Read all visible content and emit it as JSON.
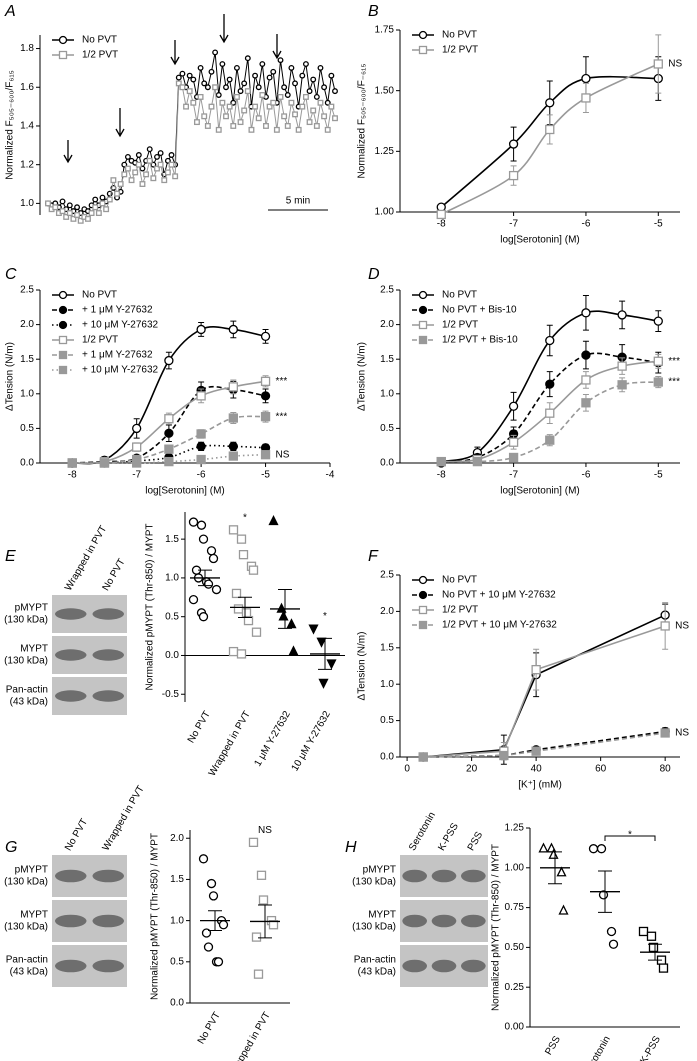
{
  "chart_data": [
    {
      "type": "line",
      "label": "A",
      "y_label": "Normalized F₅₀₅₋₆₀₀/F₆₁₅",
      "ylim": [
        0.94,
        1.87
      ],
      "yticks": [
        {
          "value": 1,
          "label": "1.0"
        },
        1.2,
        1.4,
        1.6,
        1.8
      ],
      "scale_bar": "5 min",
      "legend": "upper left",
      "series": [
        {
          "name": "No PVT",
          "color": "#000000",
          "marker": "open-circle",
          "dash": "solid",
          "values": [
            1.0,
            0.99,
            1.0,
            0.98,
            1.01,
            0.97,
            0.99,
            0.96,
            0.98,
            0.95,
            0.97,
            0.96,
            0.99,
            1.02,
            0.99,
            1.03,
            1.01,
            1.05,
            1.08,
            1.03,
            1.06,
            1.2,
            1.24,
            1.22,
            1.21,
            1.25,
            1.18,
            1.22,
            1.28,
            1.2,
            1.24,
            1.26,
            1.15,
            1.22,
            1.25,
            1.2,
            1.65,
            1.67,
            1.6,
            1.66,
            1.64,
            1.55,
            1.7,
            1.62,
            1.6,
            1.68,
            1.78,
            1.56,
            1.72,
            1.6,
            1.64,
            1.52,
            1.7,
            1.58,
            1.62,
            1.75,
            1.5,
            1.66,
            1.6,
            1.72,
            1.55,
            1.65,
            1.68,
            1.52,
            1.74,
            1.6,
            1.56,
            1.7,
            1.62,
            1.5,
            1.66,
            1.72,
            1.58,
            1.64,
            1.55,
            1.7,
            1.6,
            1.52,
            1.66,
            1.58
          ]
        },
        {
          "name": "1/2 PVT",
          "color": "#999999",
          "marker": "open-square",
          "dash": "solid",
          "values": [
            1.0,
            0.97,
            0.98,
            0.95,
            0.96,
            0.93,
            0.95,
            0.92,
            0.94,
            0.91,
            0.93,
            0.92,
            0.95,
            0.98,
            0.95,
            1.0,
            0.97,
            1.02,
            1.12,
            1.05,
            1.1,
            1.15,
            1.18,
            1.12,
            1.16,
            1.2,
            1.1,
            1.15,
            1.22,
            1.13,
            1.18,
            1.2,
            1.12,
            1.16,
            1.2,
            1.14,
            1.62,
            1.6,
            1.5,
            1.58,
            1.52,
            1.42,
            1.55,
            1.45,
            1.4,
            1.5,
            1.6,
            1.38,
            1.52,
            1.45,
            1.5,
            1.4,
            1.55,
            1.42,
            1.48,
            1.58,
            1.38,
            1.5,
            1.44,
            1.56,
            1.4,
            1.5,
            1.52,
            1.38,
            1.55,
            1.45,
            1.4,
            1.52,
            1.46,
            1.38,
            1.5,
            1.55,
            1.42,
            1.48,
            1.4,
            1.52,
            1.45,
            1.38,
            1.5,
            1.44
          ]
        }
      ]
    },
    {
      "type": "line",
      "label": "B",
      "smooth": true,
      "y_label": "Normalized F₅₀₅₋₆₀₀/F₋₆₁₅",
      "x_label": "log[Serotonin] (M)",
      "x": [
        -8,
        -7,
        -6.5,
        -6,
        -5
      ],
      "xlim": [
        -8.57,
        -4.7
      ],
      "xticks": [
        -8,
        -7,
        -6,
        -5
      ],
      "ylim": [
        1,
        1.75
      ],
      "yticks": [
        {
          "value": 1,
          "label": "1.00"
        },
        1.25,
        {
          "value": 1.5,
          "label": "1.50"
        },
        1.75
      ],
      "legend": "upper left",
      "series": [
        {
          "name": "No PVT",
          "color": "#000000",
          "marker": "open-circle",
          "dash": "solid",
          "values": [
            1.02,
            1.28,
            1.45,
            1.55,
            1.55
          ],
          "errors": [
            0.01,
            0.07,
            0.09,
            0.09,
            0.09
          ]
        },
        {
          "name": "1/2 PVT",
          "color": "#999999",
          "marker": "open-square",
          "dash": "solid",
          "values": [
            0.99,
            1.15,
            1.34,
            1.47,
            1.61
          ],
          "errors": [
            0.01,
            0.04,
            0.06,
            0.06,
            0.12
          ],
          "annotation": "NS"
        }
      ]
    },
    {
      "type": "line",
      "label": "C",
      "smooth": true,
      "y_label": "ΔTension (N/m)",
      "x_label": "log[Serotonin] (M)",
      "x": [
        -8,
        -7.5,
        -7,
        -6.5,
        -6,
        -5.5,
        -5
      ],
      "xlim": [
        -8.5,
        -4
      ],
      "xticks": [
        -8,
        -7,
        -6,
        -5,
        -4
      ],
      "ylim": [
        0,
        2.5
      ],
      "yticks": [
        {
          "value": 0,
          "label": "0.0"
        },
        0.5,
        {
          "value": 1,
          "label": "1.0"
        },
        1.5,
        {
          "value": 2,
          "label": "2.0"
        },
        2.5
      ],
      "legend": "upper left",
      "series": [
        {
          "name": "No PVT",
          "color": "#000000",
          "marker": "open-circle",
          "dash": "solid",
          "values": [
            0,
            0.04,
            0.5,
            1.48,
            1.93,
            1.93,
            1.83
          ],
          "errors": [
            0.02,
            0.05,
            0.14,
            0.12,
            0.1,
            0.12,
            0.1
          ]
        },
        {
          "name": "+ 1 μM Y-27632",
          "color": "#000000",
          "marker": "filled-circle",
          "dash": "dashed",
          "values": [
            0,
            0.02,
            0.07,
            0.43,
            1.05,
            1.06,
            0.97
          ],
          "errors": [
            0.01,
            0.02,
            0.03,
            0.12,
            0.12,
            0.12,
            0.1
          ]
        },
        {
          "name": "+ 10 μM Y-27632",
          "color": "#000000",
          "marker": "filled-circle",
          "dash": "dotted",
          "values": [
            0,
            0,
            0.03,
            0.08,
            0.24,
            0.24,
            0.22
          ],
          "errors": [
            0.01,
            0.01,
            0.02,
            0.03,
            0.06,
            0.06,
            0.05
          ]
        },
        {
          "name": "1/2 PVT",
          "color": "#999999",
          "marker": "open-square",
          "dash": "solid",
          "values": [
            0,
            0.02,
            0.23,
            0.64,
            0.97,
            1.1,
            1.18
          ],
          "errors": [
            0.02,
            0.02,
            0.06,
            0.08,
            0.1,
            0.1,
            0.08
          ],
          "annotation": "***"
        },
        {
          "name": "+ 1 μM Y-27632",
          "color": "#999999",
          "marker": "filled-square",
          "dash": "dashed",
          "values": [
            0,
            0,
            0.05,
            0.2,
            0.42,
            0.65,
            0.67
          ],
          "errors": [
            0.01,
            0.01,
            0.02,
            0.05,
            0.06,
            0.08,
            0.08
          ],
          "annotation": "***"
        },
        {
          "name": "+ 10 μM Y-27632",
          "color": "#999999",
          "marker": "filled-square",
          "dash": "dotted",
          "values": [
            0,
            0,
            0,
            0.02,
            0.05,
            0.1,
            0.12
          ],
          "errors": [
            0.01,
            0.01,
            0.01,
            0.01,
            0.02,
            0.03,
            0.03
          ],
          "annotation": "NS"
        }
      ]
    },
    {
      "type": "line",
      "label": "D",
      "smooth": true,
      "y_label": "ΔTension (N/m)",
      "x_label": "log[Serotonin] (M)",
      "x": [
        -8,
        -7.5,
        -7,
        -6.5,
        -6,
        -5.5,
        -5
      ],
      "xlim": [
        -8.57,
        -4.7
      ],
      "xticks": [
        -8,
        -7,
        -6,
        -5
      ],
      "ylim": [
        0,
        2.5
      ],
      "yticks": [
        {
          "value": 0,
          "label": "0.0"
        },
        0.5,
        {
          "value": 1,
          "label": "1.0"
        },
        1.5,
        {
          "value": 2,
          "label": "2.0"
        },
        2.5
      ],
      "legend": "upper left",
      "series": [
        {
          "name": "No PVT",
          "color": "#000000",
          "marker": "open-circle",
          "dash": "solid",
          "values": [
            0.02,
            0.15,
            0.82,
            1.77,
            2.17,
            2.14,
            2.05
          ],
          "errors": [
            0.03,
            0.08,
            0.2,
            0.22,
            0.25,
            0.2,
            0.15
          ]
        },
        {
          "name": "No PVT + Bis-10",
          "color": "#000000",
          "marker": "filled-circle",
          "dash": "dashed",
          "values": [
            0,
            0.08,
            0.42,
            1.14,
            1.56,
            1.53,
            1.45
          ],
          "errors": [
            0.02,
            0.04,
            0.1,
            0.18,
            0.2,
            0.18,
            0.15
          ]
        },
        {
          "name": "1/2 PVT",
          "color": "#999999",
          "marker": "open-square",
          "dash": "solid",
          "values": [
            0.02,
            0.05,
            0.3,
            0.72,
            1.2,
            1.4,
            1.47
          ],
          "errors": [
            0.02,
            0.03,
            0.1,
            0.15,
            0.12,
            0.12,
            0.1
          ],
          "annotation": "***"
        },
        {
          "name": "1/2 PVT + Bis-10",
          "color": "#999999",
          "marker": "filled-square",
          "dash": "dashed",
          "values": [
            0.02,
            0.02,
            0.08,
            0.33,
            0.87,
            1.13,
            1.17
          ],
          "errors": [
            0.02,
            0.02,
            0.04,
            0.08,
            0.12,
            0.1,
            0.08
          ],
          "annotation": "***"
        }
      ]
    },
    {
      "type": "scatter",
      "label": "E",
      "y_label": "Normalized pMYPT (Thr-850) / MYPT",
      "ylim": [
        -0.6,
        1.85
      ],
      "yticks": [
        -0.5,
        {
          "value": 0,
          "label": "0.0"
        },
        0.5,
        {
          "value": 1,
          "label": "1.0"
        },
        1.5
      ],
      "zero_line": true,
      "categories": [
        "No PVT",
        "Wrapped in PVT",
        "1 μM Y-27632",
        "10 μM Y-27632"
      ],
      "markers": [
        "open-circle",
        "open-square",
        "filled-triangle",
        "filled-triangle-down"
      ],
      "colors": [
        "#000000",
        "#999999",
        "#000000",
        "#000000"
      ],
      "points": [
        [
          1.72,
          1.68,
          1.5,
          1.35,
          1.25,
          1.1,
          1.0,
          0.95,
          0.92,
          0.85,
          0.72,
          0.55,
          0.5
        ],
        [
          1.62,
          1.5,
          1.3,
          1.15,
          1.1,
          0.8,
          0.6,
          0.55,
          0.45,
          0.3,
          0.05,
          0.02
        ],
        [
          1.73,
          0.6,
          0.5,
          0.4,
          0.05
        ],
        [
          0.35,
          0.18,
          -0.35,
          -0.1
        ]
      ],
      "mean": [
        1.0,
        0.62,
        0.6,
        0.02
      ],
      "sem": [
        0.1,
        0.13,
        0.25,
        0.2
      ],
      "annotations": [
        null,
        "*",
        null,
        "*"
      ],
      "blot": {
        "lanes": [
          "Wrapped in PVT",
          "No PVT"
        ],
        "bands": [
          {
            "protein": "pMYPT",
            "size": "(130 kDa)"
          },
          {
            "protein": "MYPT",
            "size": "(130 kDa)"
          },
          {
            "protein": "Pan-actin",
            "size": "(43 kDa)"
          }
        ]
      }
    },
    {
      "type": "line",
      "label": "F",
      "y_label": "ΔTension (N/m)",
      "x_label": "[K⁺] (mM)",
      "x": [
        5,
        30,
        40,
        80
      ],
      "xlim": [
        -2.2,
        84.6
      ],
      "xticks": [
        0,
        20,
        40,
        60,
        80
      ],
      "ylim": [
        0,
        2.5
      ],
      "yticks": [
        {
          "value": 0,
          "label": "0.0"
        },
        0.5,
        {
          "value": 1,
          "label": "1.0"
        },
        1.5,
        {
          "value": 2,
          "label": "2.0"
        },
        2.5
      ],
      "legend": "upper left",
      "series": [
        {
          "name": "No PVT",
          "color": "#000000",
          "marker": "open-circle",
          "dash": "solid",
          "values": [
            0,
            0.1,
            1.13,
            1.95
          ],
          "errors": [
            0.02,
            0.2,
            0.3,
            0.15
          ]
        },
        {
          "name": "No PVT + 10 μM Y-27632",
          "color": "#000000",
          "marker": "filled-circle",
          "dash": "dashed",
          "values": [
            0,
            0.02,
            0.1,
            0.35
          ],
          "errors": [
            0.01,
            0.02,
            0.03,
            0.05
          ]
        },
        {
          "name": "1/2 PVT",
          "color": "#999999",
          "marker": "open-square",
          "dash": "solid",
          "values": [
            0,
            0.08,
            1.2,
            1.8
          ],
          "errors": [
            0.02,
            0.12,
            0.28,
            0.32
          ],
          "annotation": "NS"
        },
        {
          "name": "1/2 PVT + 10 μM Y-27632",
          "color": "#999999",
          "marker": "filled-square",
          "dash": "dashed",
          "values": [
            0,
            0.02,
            0.08,
            0.33
          ],
          "errors": [
            0.01,
            0.02,
            0.03,
            0.05
          ],
          "annotation": "NS"
        }
      ]
    },
    {
      "type": "scatter",
      "label": "G",
      "y_label": "Normalized pMYPT (Thr-850) / MYPT",
      "ylim": [
        0,
        2.1
      ],
      "yticks": [
        {
          "value": 0,
          "label": "0.0"
        },
        0.5,
        {
          "value": 1,
          "label": "1.0"
        },
        1.5,
        {
          "value": 2,
          "label": "2.0"
        }
      ],
      "categories": [
        "No PVT",
        "Wrapped in PVT"
      ],
      "markers": [
        "open-circle",
        "open-square"
      ],
      "colors": [
        "#000000",
        "#999999"
      ],
      "points": [
        [
          1.75,
          1.45,
          1.3,
          1.0,
          0.95,
          0.85,
          0.68,
          0.5,
          0.5
        ],
        [
          1.95,
          1.55,
          1.25,
          1.0,
          0.95,
          0.8,
          0.35
        ]
      ],
      "mean": [
        1.0,
        0.99
      ],
      "sem": [
        0.12,
        0.2
      ],
      "annotations": [
        null,
        "NS"
      ],
      "blot": {
        "lanes": [
          "No PVT",
          "Wrapped in PVT"
        ],
        "bands": [
          {
            "protein": "pMYPT",
            "size": "(130 kDa)"
          },
          {
            "protein": "MYPT",
            "size": "(130 kDa)"
          },
          {
            "protein": "Pan-actin",
            "size": "(43 kDa)"
          }
        ]
      }
    },
    {
      "type": "scatter",
      "label": "H",
      "y_label": "Normalized pMYPT (Thr-850) / MYPT",
      "ylim": [
        0,
        1.25
      ],
      "yticks": [
        {
          "value": 0,
          "label": "0.00"
        },
        0.25,
        {
          "value": 0.5,
          "label": "0.50"
        },
        0.75,
        {
          "value": 1,
          "label": "1.00"
        },
        1.25
      ],
      "categories": [
        "PSS",
        "Serotonin",
        "K-PSS"
      ],
      "markers": [
        "open-triangle",
        "open-circle",
        "open-square"
      ],
      "colors": [
        "#000000",
        "#000000",
        "#000000"
      ],
      "points": [
        [
          1.12,
          1.12,
          1.08,
          0.97,
          0.73
        ],
        [
          1.12,
          1.12,
          0.83,
          0.6,
          0.52
        ],
        [
          0.6,
          0.57,
          0.5,
          0.42,
          0.37
        ]
      ],
      "mean": [
        1.0,
        0.85,
        0.47
      ],
      "sem": [
        0.1,
        0.13,
        0.05
      ],
      "bracket": "*",
      "blot": {
        "lanes": [
          "Serotonin",
          "K-PSS",
          "PSS"
        ],
        "bands": [
          {
            "protein": "pMYPT",
            "size": "(130 kDa)"
          },
          {
            "protein": "MYPT",
            "size": "(130 kDa)"
          },
          {
            "protein": "Pan-actin",
            "size": "(43 kDa)"
          }
        ]
      }
    }
  ]
}
